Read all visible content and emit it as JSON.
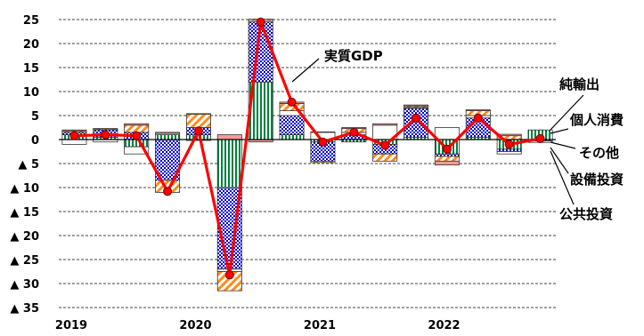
{
  "chart_data": {
    "type": "bar",
    "subtype": "stacked bar with line overlay",
    "x_tick_labels": [
      {
        "label": "2019",
        "quarter_index": 0
      },
      {
        "label": "2020",
        "quarter_index": 4
      },
      {
        "label": "2021",
        "quarter_index": 8
      },
      {
        "label": "2022",
        "quarter_index": 12
      }
    ],
    "quarters": 16,
    "ylim": [
      -35,
      25
    ],
    "y_ticks": [
      {
        "value": 25,
        "label": "25"
      },
      {
        "value": 20,
        "label": "20"
      },
      {
        "value": 15,
        "label": "15"
      },
      {
        "value": 10,
        "label": "10"
      },
      {
        "value": 5,
        "label": "5"
      },
      {
        "value": 0,
        "label": "0"
      },
      {
        "value": -5,
        "label": "▲ 5"
      },
      {
        "value": -10,
        "label": "▲ 10"
      },
      {
        "value": -15,
        "label": "▲ 15"
      },
      {
        "value": -20,
        "label": "▲ 20"
      },
      {
        "value": -25,
        "label": "▲ 25"
      },
      {
        "value": -30,
        "label": "▲ 30"
      },
      {
        "value": -35,
        "label": "▲ 35"
      }
    ],
    "grid": "horizontal dashed",
    "series": [
      {
        "name": "純輸出",
        "kind": "bar",
        "pattern": "green-stripes",
        "values": [
          1.0,
          0.5,
          -1.5,
          1.0,
          1.0,
          -10.0,
          12.0,
          1.0,
          -0.5,
          -0.5,
          -1.0,
          0.5,
          -3.0,
          0.5,
          -2.0,
          2.0
        ]
      },
      {
        "name": "個人消費",
        "kind": "bar",
        "pattern": "blue-checker",
        "values": [
          0.5,
          1.5,
          1.5,
          -8.5,
          1.5,
          -17.0,
          12.5,
          4.0,
          -4.0,
          1.0,
          -2.0,
          6.0,
          -0.5,
          4.0,
          -0.5,
          -0.3
        ]
      },
      {
        "name": "その他",
        "kind": "bar",
        "pattern": "white",
        "values": [
          -1.0,
          -0.5,
          -1.5,
          0.3,
          -0.2,
          -0.5,
          0.3,
          1.0,
          1.5,
          0.5,
          3.0,
          0.2,
          2.5,
          0.5,
          -0.5,
          -0.3
        ]
      },
      {
        "name": "設備投資",
        "kind": "bar",
        "pattern": "orange-hatch",
        "values": [
          0.3,
          0.2,
          1.5,
          -2.5,
          2.8,
          -4.0,
          0.3,
          1.5,
          -0.3,
          0.8,
          -1.5,
          0.3,
          -1.0,
          1.0,
          0.8,
          0.0
        ]
      },
      {
        "name": "公共投資",
        "kind": "bar",
        "pattern": "pink",
        "values": [
          0.2,
          0.1,
          0.3,
          0.2,
          0.1,
          1.0,
          -0.5,
          0.3,
          0.1,
          0.2,
          0.3,
          0.2,
          -0.8,
          0.2,
          0.3,
          0.0
        ]
      },
      {
        "name": "実質GDP",
        "kind": "line",
        "values": [
          0.8,
          1.0,
          0.8,
          -10.8,
          1.8,
          -28.2,
          24.5,
          7.8,
          -0.5,
          1.5,
          -1.2,
          4.5,
          -2.0,
          4.5,
          -1.0,
          0.2
        ]
      }
    ],
    "colors": {
      "gdp_line": "#ff0000",
      "gdp_marker": "#ff0000",
      "net_exports": "#008040",
      "consumption": "#0000cc",
      "capex": "#ff8c1a",
      "public_investment": "#ff9999",
      "other": "#ffffff"
    }
  },
  "labels": {
    "gdp": "実質GDP",
    "net_exports": "純輸出",
    "consumption": "個人消費",
    "other": "その他",
    "capex": "設備投資",
    "public_investment": "公共投資"
  }
}
